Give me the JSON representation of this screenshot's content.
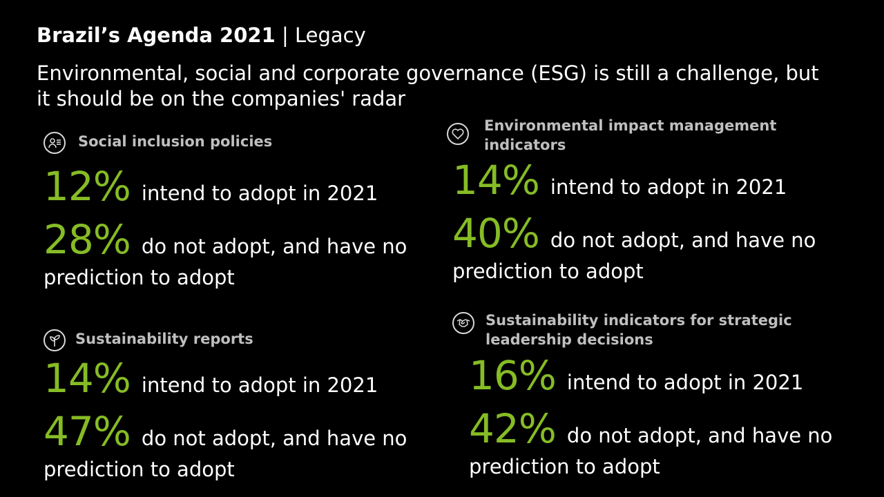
{
  "header": {
    "title_bold": "Brazil’s Agenda 2021",
    "title_sep": " | ",
    "title_rest": "Legacy",
    "subtitle": "Environmental, social and corporate governance (ESG) is still a challenge, but it should be on the companies' radar"
  },
  "sections": [
    {
      "label": "Social inclusion policies",
      "icon": "people-list-icon",
      "stat1_value": "12%",
      "stat1_text": "intend to adopt in 2021",
      "stat2_value": "28%",
      "stat2_text": "do not adopt, and have no",
      "stat2_cont": "prediction to adopt"
    },
    {
      "label": "Environmental impact management indicators",
      "icon": "heart-icon",
      "stat1_value": "14%",
      "stat1_text": "intend to adopt in 2021",
      "stat2_value": "40%",
      "stat2_text": "do not adopt, and have no",
      "stat2_cont": "prediction to adopt"
    },
    {
      "label": "Sustainability reports",
      "icon": "sprout-icon",
      "stat1_value": "14%",
      "stat1_text": "intend to adopt in 2021",
      "stat2_value": "47%",
      "stat2_text": "do not adopt, and have no",
      "stat2_cont": "prediction to adopt"
    },
    {
      "label": "Sustainability indicators for strategic leadership decisions",
      "icon": "handshake-icon",
      "stat1_value": "16%",
      "stat1_text": "intend to adopt in 2021",
      "stat2_value": "42%",
      "stat2_text": "do not adopt, and have no",
      "stat2_cont": "prediction to adopt"
    }
  ],
  "colors": {
    "background": "#000000",
    "accent_green": "#86bc25",
    "heading_gray": "#bfbfbf",
    "text": "#ffffff"
  }
}
